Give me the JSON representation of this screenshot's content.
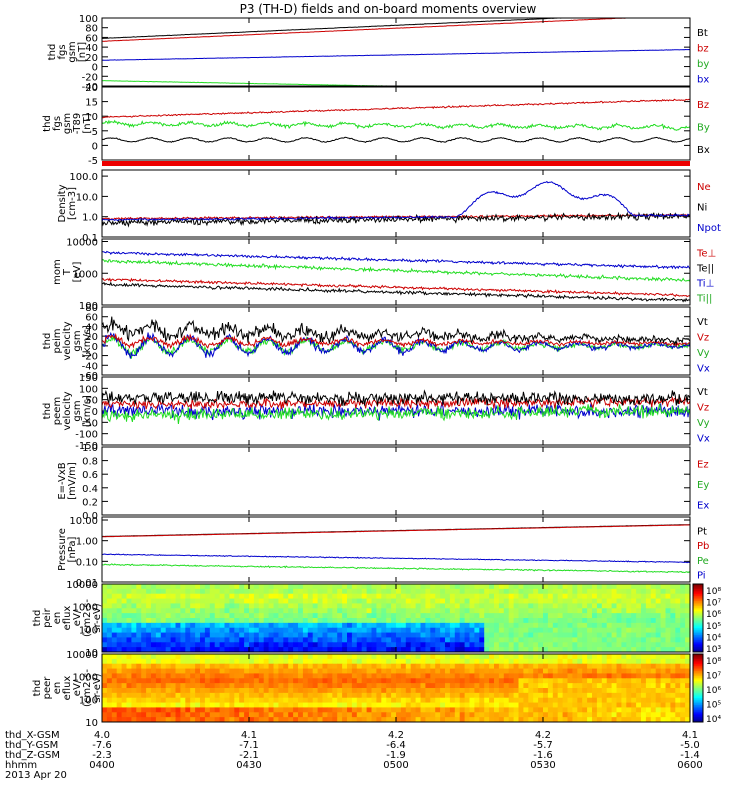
{
  "title": "P3 (TH-D) fields and on-board moments overview",
  "colors": {
    "black": "#000000",
    "red": "#cc0000",
    "green": "#22dd22",
    "blue": "#0000cc"
  },
  "chart_data": {
    "type": "line",
    "time_ticks": [
      "0400",
      "0430",
      "0500",
      "0530",
      "0600"
    ],
    "date": "2013 Apr 20",
    "panels": [
      {
        "id": "fgs",
        "ylabel": [
          "thd",
          "fgs",
          "gsm",
          "[nT]"
        ],
        "ylim": [
          -40,
          100
        ],
        "yticks": [
          "100",
          "80",
          "60",
          "40",
          "20",
          "0",
          "-20",
          "-40"
        ],
        "legend": [
          {
            "label": "Bt",
            "color": "#000000"
          },
          {
            "label": "bz",
            "color": "#cc0000"
          },
          {
            "label": "by",
            "color": "#22aa22"
          },
          {
            "label": "bx",
            "color": "#0000cc"
          }
        ],
        "series": [
          {
            "color": "#000000",
            "start": 58,
            "end": 112,
            "noise": 0.3
          },
          {
            "color": "#cc0000",
            "start": 52,
            "end": 106,
            "noise": 0.3
          },
          {
            "color": "#0000cc",
            "start": 13,
            "end": 35,
            "noise": 0.3
          },
          {
            "color": "#22dd22",
            "start": -29,
            "end": -52,
            "noise": 0.3
          }
        ]
      },
      {
        "id": "fgs-t89",
        "ylabel": [
          "thd",
          "fgs",
          "gsm",
          "-T89",
          "[nT]"
        ],
        "ylim": [
          -9,
          20
        ],
        "yticks": [
          "20",
          "15",
          "10",
          "5",
          "0",
          "-5"
        ],
        "legend": [
          {
            "label": "Bz",
            "color": "#cc0000"
          },
          {
            "label": "By",
            "color": "#22aa22"
          },
          {
            "label": "Bx",
            "color": "#000000"
          }
        ],
        "series": [
          {
            "color": "#cc0000",
            "start": 8,
            "end": 15,
            "noise": 0.3
          },
          {
            "color": "#22dd22",
            "start": 5.5,
            "end": 4,
            "noise": 0.6,
            "wave": 0.6
          },
          {
            "color": "#000000",
            "start": -1,
            "end": -1,
            "noise": 0.2,
            "wave": 0.8
          }
        ]
      },
      {
        "id": "density",
        "ylabel": [
          "Density",
          "[cm-3]"
        ],
        "log": true,
        "ylim": [
          0.1,
          200
        ],
        "yticks": [
          "100.0",
          "10.0",
          "1.0",
          "0.1"
        ],
        "yticks_values": [
          100,
          10,
          1,
          0.1
        ],
        "legend": [
          {
            "label": "Ne",
            "color": "#cc0000"
          },
          {
            "label": "Ni",
            "color": "#000000"
          },
          {
            "label": "Npot",
            "color": "#0000cc"
          }
        ],
        "series": [
          {
            "color": "#cc0000",
            "start": 0.8,
            "end": 1.2,
            "noise": 0.05
          },
          {
            "color": "#000000",
            "start": 0.5,
            "end": 1.1,
            "noise": 0.15
          },
          {
            "color": "#0000cc",
            "start": 0.7,
            "end": 1.2,
            "noise": 0.05,
            "bump": true
          }
        ]
      },
      {
        "id": "temperature",
        "ylabel": [
          "mom",
          "T",
          "[eV]"
        ],
        "log": true,
        "ylim": [
          100,
          12000
        ],
        "yticks": [
          "10000",
          "1000",
          "100"
        ],
        "yticks_values": [
          10000,
          1000,
          100
        ],
        "legend": [
          {
            "label": "Te⊥",
            "color": "#cc0000"
          },
          {
            "label": "Te||",
            "color": "#000000"
          },
          {
            "label": "Ti⊥",
            "color": "#0000cc"
          },
          {
            "label": "Ti||",
            "color": "#22aa22"
          }
        ],
        "series": [
          {
            "color": "#0000cc",
            "start": 4500,
            "end": 1500,
            "noise": 0.04
          },
          {
            "color": "#22dd22",
            "start": 2500,
            "end": 600,
            "noise": 0.05
          },
          {
            "color": "#cc0000",
            "start": 650,
            "end": 200,
            "noise": 0.04
          },
          {
            "color": "#000000",
            "start": 450,
            "end": 140,
            "noise": 0.05
          }
        ]
      },
      {
        "id": "peim-velocity",
        "ylabel": [
          "thd",
          "peim",
          "velocity",
          "gsm",
          "[km/s]"
        ],
        "ylim": [
          -60,
          80
        ],
        "yticks": [
          "80",
          "60",
          "40",
          "20",
          "0",
          "-20",
          "-40",
          "-60"
        ],
        "legend": [
          {
            "label": "Vt",
            "color": "#000000"
          },
          {
            "label": "Vz",
            "color": "#cc0000"
          },
          {
            "label": "Vy",
            "color": "#22aa22"
          },
          {
            "label": "Vx",
            "color": "#0000cc"
          }
        ],
        "series": [
          {
            "color": "#22dd22",
            "start": 0,
            "end": 0,
            "noise": 8,
            "wave": 15,
            "decay": true
          },
          {
            "color": "#0000cc",
            "start": 0,
            "end": 0,
            "noise": 8,
            "wave": 20,
            "decay": true
          },
          {
            "color": "#cc0000",
            "start": 10,
            "end": 5,
            "noise": 6,
            "wave": 8,
            "decay": true
          },
          {
            "color": "#000000",
            "start": 35,
            "end": 12,
            "noise": 12,
            "wave": 10,
            "decay": true
          }
        ]
      },
      {
        "id": "peem-velocity",
        "ylabel": [
          "thd",
          "peem",
          "velocity",
          "gsm",
          "[km/s]"
        ],
        "ylim": [
          -150,
          150
        ],
        "yticks": [
          "150",
          "100",
          "50",
          "0",
          "-50",
          "-100",
          "-150"
        ],
        "legend": [
          {
            "label": "Vt",
            "color": "#000000"
          },
          {
            "label": "Vz",
            "color": "#cc0000"
          },
          {
            "label": "Vy",
            "color": "#22aa22"
          },
          {
            "label": "Vx",
            "color": "#0000cc"
          }
        ],
        "series": [
          {
            "color": "#0000cc",
            "start": 0,
            "end": 0,
            "noise": 30
          },
          {
            "color": "#22dd22",
            "start": -20,
            "end": 0,
            "noise": 28
          },
          {
            "color": "#cc0000",
            "start": 30,
            "end": 40,
            "noise": 20
          },
          {
            "color": "#000000",
            "start": 60,
            "end": 55,
            "noise": 28
          }
        ]
      },
      {
        "id": "efield",
        "ylabel": [
          "E=-VxB",
          "[mV/m]"
        ],
        "ylim": [
          0,
          1
        ],
        "yticks": [
          "1.0",
          "0.8",
          "0.6",
          "0.4",
          "0.2",
          "0.0"
        ],
        "legend": [
          {
            "label": "Ez",
            "color": "#cc0000"
          },
          {
            "label": "Ey",
            "color": "#22aa22"
          },
          {
            "label": "Ex",
            "color": "#0000cc"
          }
        ],
        "series": []
      },
      {
        "id": "pressure",
        "ylabel": [
          "Pressure",
          "[nPa]"
        ],
        "log": true,
        "ylim": [
          0.01,
          14
        ],
        "yticks": [
          "10.00",
          "1.00",
          "0.10",
          "0.01"
        ],
        "yticks_values": [
          10,
          1,
          0.1,
          0.01
        ],
        "legend": [
          {
            "label": "Pt",
            "color": "#000000"
          },
          {
            "label": "Pb",
            "color": "#cc0000"
          },
          {
            "label": "Pe",
            "color": "#22aa22"
          },
          {
            "label": "Pi",
            "color": "#0000cc"
          }
        ],
        "series": [
          {
            "color": "#000000",
            "start": 1.6,
            "end": 6,
            "noise": 0.005
          },
          {
            "color": "#cc0000",
            "start": 1.55,
            "end": 5.8,
            "noise": 0.005
          },
          {
            "color": "#0000cc",
            "start": 0.22,
            "end": 0.09,
            "noise": 0.02
          },
          {
            "color": "#22dd22",
            "start": 0.07,
            "end": 0.03,
            "noise": 0.03
          }
        ]
      },
      {
        "id": "peir-eflux",
        "ylabel": [
          "thd",
          "peir",
          "en",
          "eflux",
          "eV/",
          "(cm2-s-",
          "sr-eV)"
        ],
        "type": "spectrogram",
        "yticks": [
          "10000",
          "1000",
          "100",
          "10"
        ],
        "colorbar_ticks": [
          "10⁸",
          "10⁷",
          "10⁶",
          "10⁵",
          "10⁴",
          "10³"
        ],
        "palette": "ion"
      },
      {
        "id": "peer-eflux",
        "ylabel": [
          "thd",
          "peer",
          "en",
          "eflux",
          "eV/",
          "(cm2-s-",
          "sr-eV)"
        ],
        "type": "spectrogram",
        "yticks": [
          "10000",
          "1000",
          "100",
          "10"
        ],
        "colorbar_ticks": [
          "10⁸",
          "10⁷",
          "10⁶",
          "10⁵",
          "10⁴"
        ],
        "palette": "electron"
      }
    ],
    "ephemeris": [
      {
        "label": "thd_X-GSM",
        "values": [
          "4.0",
          "4.1",
          "4.2",
          "4.2",
          "4.1"
        ]
      },
      {
        "label": "thd_Y-GSM",
        "values": [
          "-7.6",
          "-7.1",
          "-6.4",
          "-5.7",
          "-5.0"
        ]
      },
      {
        "label": "thd_Z-GSM",
        "values": [
          "-2.3",
          "-2.1",
          "-1.9",
          "-1.6",
          "-1.4"
        ]
      },
      {
        "label": "hhmm",
        "values": [
          "0400",
          "0430",
          "0500",
          "0530",
          "0600"
        ]
      }
    ]
  }
}
